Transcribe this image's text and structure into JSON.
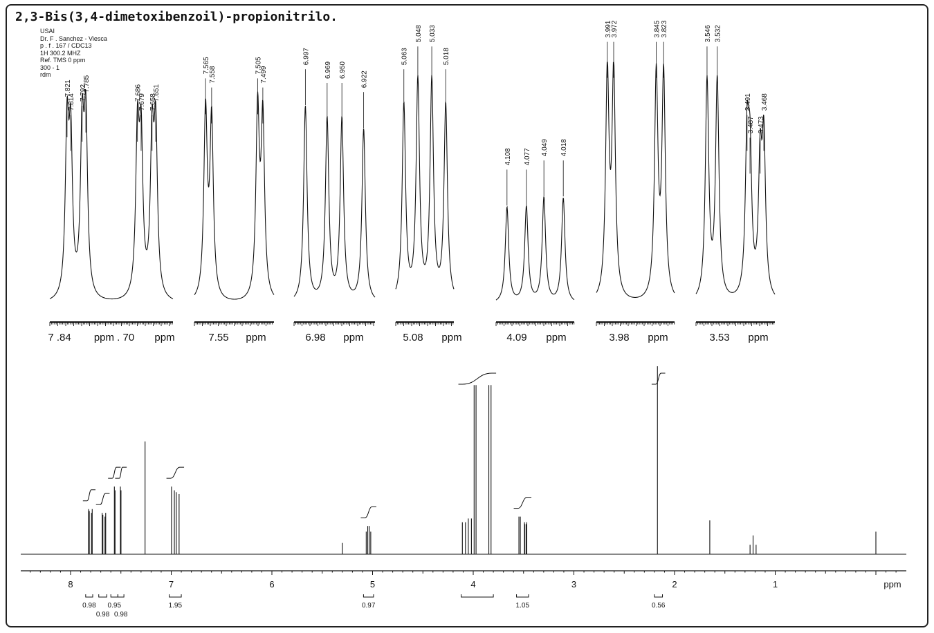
{
  "page": {
    "title": "2,3-Bis(3,4-dimetoxibenzoil)-propionitrilo.",
    "params": [
      "USAI",
      "Dr. F . Sanchez - Viesca",
      "p . f . 167 / CDC13",
      "1H    300.2  MHZ",
      "Ref.  TMS     0 ppm",
      "300 - 1",
      "rdm"
    ]
  },
  "chart_data": [
    {
      "type": "line",
      "name": "main-spectrum",
      "xlabel": "ppm",
      "xlim": [
        8.5,
        -0.2
      ],
      "xdir": "reversed",
      "x_ticks": [
        "8",
        "7",
        "6",
        "5",
        "4",
        "3",
        "2",
        "1"
      ],
      "grid": false,
      "peaks": [
        {
          "ppm": 7.821,
          "h": 0.24
        },
        {
          "ppm": 7.814,
          "h": 0.23
        },
        {
          "ppm": 7.792,
          "h": 0.22
        },
        {
          "ppm": 7.785,
          "h": 0.24
        },
        {
          "ppm": 7.686,
          "h": 0.22
        },
        {
          "ppm": 7.679,
          "h": 0.21
        },
        {
          "ppm": 7.658,
          "h": 0.2
        },
        {
          "ppm": 7.651,
          "h": 0.22
        },
        {
          "ppm": 7.565,
          "h": 0.36
        },
        {
          "ppm": 7.558,
          "h": 0.34
        },
        {
          "ppm": 7.505,
          "h": 0.36
        },
        {
          "ppm": 7.499,
          "h": 0.34
        },
        {
          "ppm": 7.26,
          "h": 0.6
        },
        {
          "ppm": 6.997,
          "h": 0.36
        },
        {
          "ppm": 6.969,
          "h": 0.34
        },
        {
          "ppm": 6.95,
          "h": 0.33
        },
        {
          "ppm": 6.922,
          "h": 0.32
        },
        {
          "ppm": 5.3,
          "h": 0.06
        },
        {
          "ppm": 5.063,
          "h": 0.12
        },
        {
          "ppm": 5.048,
          "h": 0.15
        },
        {
          "ppm": 5.033,
          "h": 0.15
        },
        {
          "ppm": 5.018,
          "h": 0.12
        },
        {
          "ppm": 4.108,
          "h": 0.17
        },
        {
          "ppm": 4.077,
          "h": 0.17
        },
        {
          "ppm": 4.049,
          "h": 0.19
        },
        {
          "ppm": 4.018,
          "h": 0.19
        },
        {
          "ppm": 3.991,
          "h": 0.9
        },
        {
          "ppm": 3.972,
          "h": 0.9
        },
        {
          "ppm": 3.845,
          "h": 0.9
        },
        {
          "ppm": 3.823,
          "h": 0.9
        },
        {
          "ppm": 3.546,
          "h": 0.2
        },
        {
          "ppm": 3.532,
          "h": 0.2
        },
        {
          "ppm": 3.491,
          "h": 0.17
        },
        {
          "ppm": 3.487,
          "h": 0.16
        },
        {
          "ppm": 3.473,
          "h": 0.16
        },
        {
          "ppm": 3.468,
          "h": 0.17
        },
        {
          "ppm": 2.17,
          "h": 1.0
        },
        {
          "ppm": 1.65,
          "h": 0.18
        },
        {
          "ppm": 1.25,
          "h": 0.05
        },
        {
          "ppm": 1.22,
          "h": 0.1
        },
        {
          "ppm": 1.19,
          "h": 0.05
        },
        {
          "ppm": 0.0,
          "h": 0.12
        }
      ],
      "integrals": [
        {
          "from": 7.85,
          "to": 7.78,
          "value": "0.98",
          "row": 1
        },
        {
          "from": 7.72,
          "to": 7.64,
          "value": "0.98",
          "row": 2
        },
        {
          "from": 7.6,
          "to": 7.53,
          "value": "0.95",
          "row": 1
        },
        {
          "from": 7.53,
          "to": 7.47,
          "value": "0.98",
          "row": 2
        },
        {
          "from": 7.02,
          "to": 6.9,
          "value": "1.95",
          "row": 1
        },
        {
          "from": 5.09,
          "to": 4.99,
          "value": "0.97",
          "row": 1
        },
        {
          "from": 4.12,
          "to": 3.8,
          "value": "",
          "row": 1
        },
        {
          "from": 3.57,
          "to": 3.45,
          "value": "1.05",
          "row": 1
        },
        {
          "from": 2.2,
          "to": 2.12,
          "value": "0.56",
          "row": 1
        }
      ]
    },
    {
      "type": "line",
      "name": "expansion-1",
      "peaks": [
        "7.821",
        "7.814",
        "7.792",
        "7.785",
        "7.686",
        "7.679",
        "7.658",
        "7.651"
      ],
      "axis_labels": [
        "7 .84",
        "ppm . 70",
        "ppm"
      ]
    },
    {
      "type": "line",
      "name": "expansion-2",
      "peaks": [
        "7.565",
        "7.558",
        "7.505",
        "7.499"
      ],
      "axis_labels": [
        "7.55",
        "ppm"
      ]
    },
    {
      "type": "line",
      "name": "expansion-3",
      "peaks": [
        "6.997",
        "6.969",
        "6.950",
        "6.922"
      ],
      "axis_labels": [
        "6.98",
        "ppm"
      ]
    },
    {
      "type": "line",
      "name": "expansion-4",
      "peaks": [
        "5.063",
        "5.048",
        "5.033",
        "5.018"
      ],
      "axis_labels": [
        "5.08",
        "ppm"
      ]
    },
    {
      "type": "line",
      "name": "expansion-5",
      "peaks": [
        "4.108",
        "4.077",
        "4.049",
        "4.018"
      ],
      "axis_labels": [
        "4.09",
        "ppm"
      ]
    },
    {
      "type": "line",
      "name": "expansion-6",
      "peaks": [
        "3.991",
        "3.972",
        "3.845",
        "3.823"
      ],
      "axis_labels": [
        "3.98",
        "ppm"
      ]
    },
    {
      "type": "line",
      "name": "expansion-7",
      "peaks": [
        "3.546",
        "3.532",
        "3.491",
        "3.487",
        "3.473",
        "3.468"
      ],
      "axis_labels": [
        "3.53",
        "ppm"
      ]
    }
  ]
}
